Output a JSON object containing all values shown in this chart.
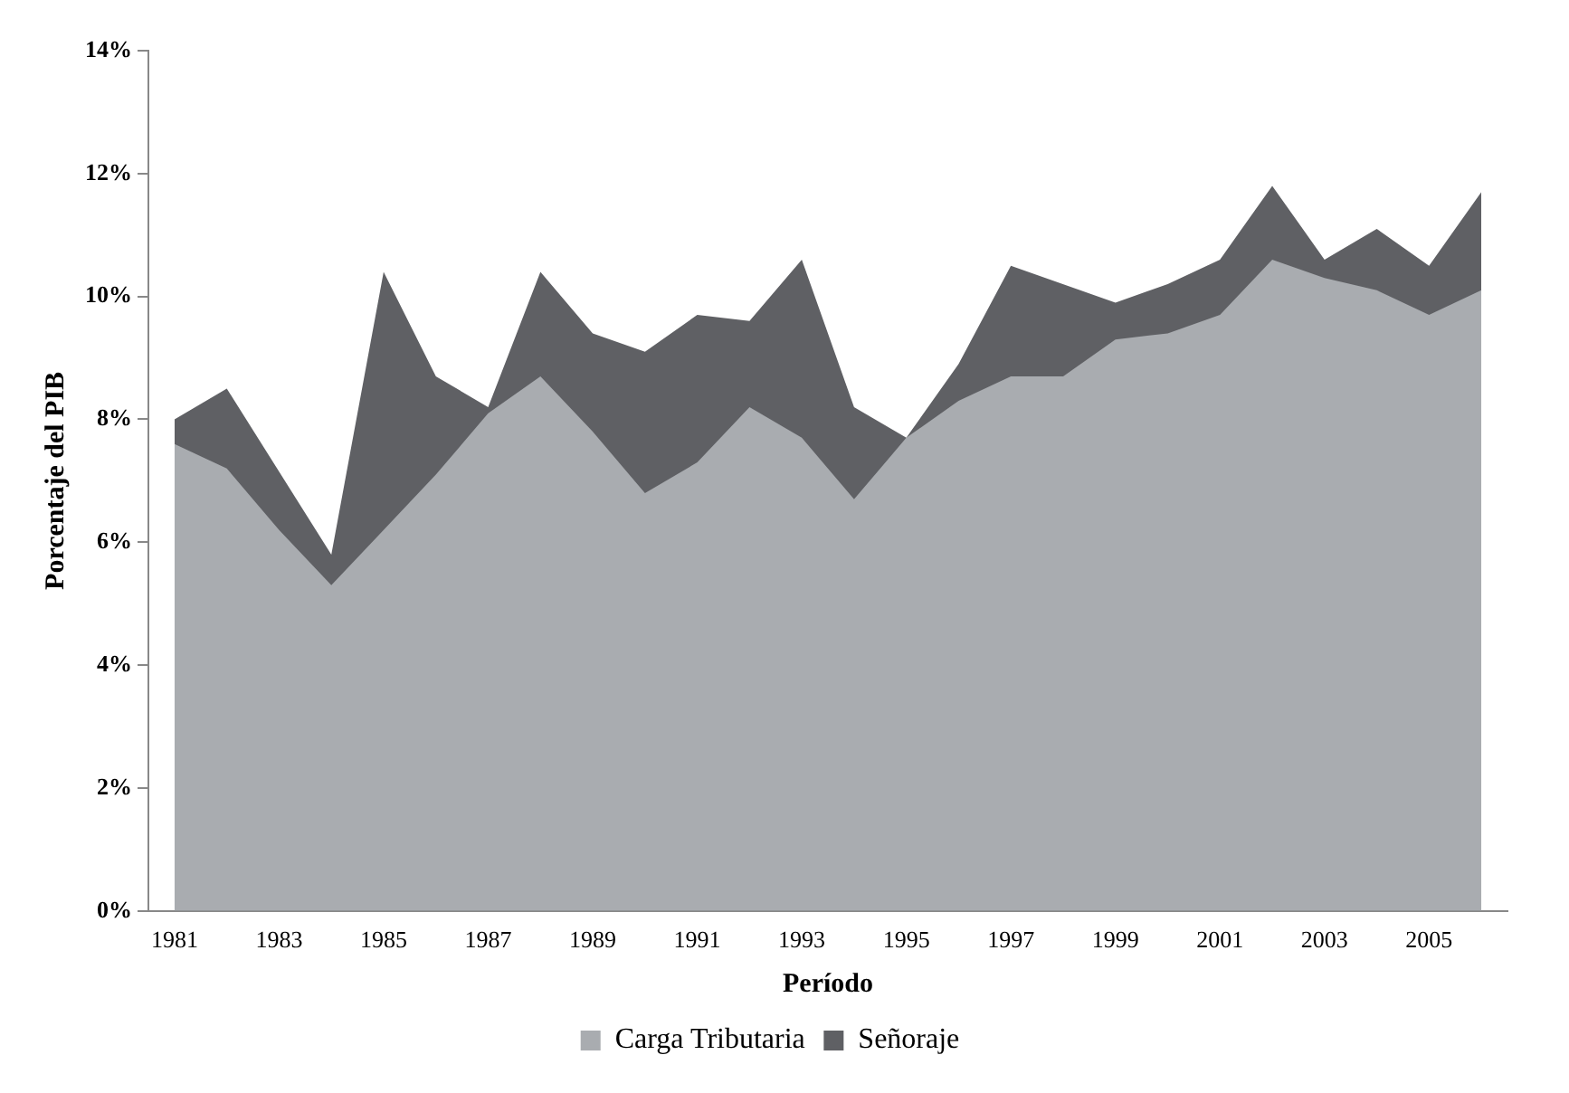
{
  "chart_data": {
    "type": "area",
    "xlabel": "Período",
    "ylabel": "Porcentaje del PIB",
    "categories": [
      "1981",
      null,
      "1983",
      null,
      "1985",
      null,
      "1987",
      null,
      "1989",
      null,
      "1991",
      null,
      "1993",
      null,
      "1995",
      null,
      "1997",
      null,
      "1999",
      null,
      "2001",
      null,
      "2003",
      null,
      "2005",
      null
    ],
    "series": [
      {
        "name": "Carga Tributaria",
        "color": "#a9acb0",
        "values": [
          7.6,
          7.2,
          6.2,
          5.3,
          6.2,
          7.1,
          8.1,
          8.7,
          7.8,
          6.8,
          7.3,
          8.2,
          7.7,
          6.7,
          7.7,
          8.3,
          8.7,
          8.7,
          9.3,
          9.4,
          9.7,
          10.6,
          10.3,
          10.1,
          9.7,
          10.1
        ]
      },
      {
        "name": "Señoraje",
        "color": "#5f6064",
        "values": [
          8.0,
          8.5,
          null,
          5.8,
          10.4,
          8.7,
          8.2,
          10.4,
          9.4,
          9.1,
          9.7,
          9.6,
          10.6,
          8.2,
          7.7,
          8.9,
          10.5,
          null,
          9.9,
          10.2,
          10.6,
          11.8,
          10.6,
          11.1,
          10.5,
          11.7
        ]
      }
    ],
    "ylim": [
      0,
      14
    ],
    "yticks": [
      {
        "value": 0,
        "label": "0%"
      },
      {
        "value": 2,
        "label": "2%"
      },
      {
        "value": 4,
        "label": "4%"
      },
      {
        "value": 6,
        "label": "6%"
      },
      {
        "value": 8,
        "label": "8%"
      },
      {
        "value": 10,
        "label": "10%"
      },
      {
        "value": 12,
        "label": "12%"
      },
      {
        "value": 14,
        "label": "14%"
      }
    ],
    "grid": false,
    "legend": "bottom"
  }
}
